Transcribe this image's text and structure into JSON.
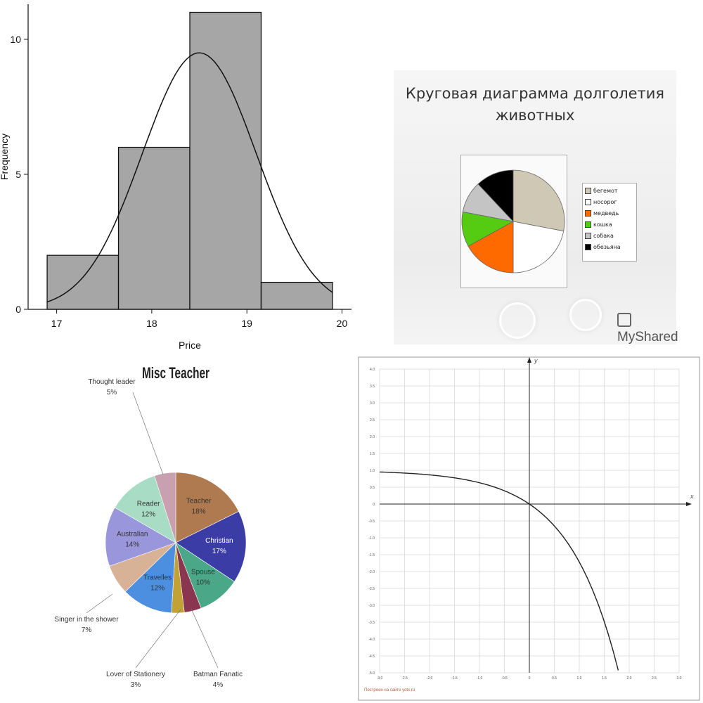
{
  "chart_data": [
    {
      "type": "bar",
      "subtype": "histogram-with-normal-curve",
      "xlabel": "Price",
      "ylabel": "Frequency",
      "xlim": [
        16.7,
        20.1
      ],
      "ylim": [
        0,
        11.3
      ],
      "xticks": [
        "17",
        "18",
        "19",
        "20"
      ],
      "yticks": [
        "0",
        "5",
        "10"
      ],
      "bins": [
        {
          "start": 16.9,
          "end": 17.65,
          "value": 2
        },
        {
          "start": 17.65,
          "end": 18.4,
          "value": 6
        },
        {
          "start": 18.4,
          "end": 19.15,
          "value": 11
        },
        {
          "start": 19.15,
          "end": 19.9,
          "value": 1
        }
      ],
      "curve": {
        "mean": 18.5,
        "sd": 0.6,
        "peak": 9.5,
        "range": [
          16.9,
          19.9
        ]
      },
      "bar_color": "#a6a6a6"
    },
    {
      "type": "pie",
      "title": [
        "Круговая диаграмма долголетия",
        "животных"
      ],
      "legend_position": "right",
      "slices": [
        {
          "label": "бегемот",
          "value": 28,
          "color": "#cfc8b5"
        },
        {
          "label": "носорог",
          "value": 22,
          "color": "#ffffff"
        },
        {
          "label": "медведь",
          "value": 17,
          "color": "#ff6a00"
        },
        {
          "label": "кошка",
          "value": 11,
          "color": "#55cc11"
        },
        {
          "label": "собака",
          "value": 10,
          "color": "#c4c4c4"
        },
        {
          "label": "обезьяна",
          "value": 12,
          "color": "#000000"
        }
      ],
      "watermark": "MyShared"
    },
    {
      "type": "pie",
      "title": "Misc Teacher",
      "slices": [
        {
          "label": "Teacher",
          "pct": "18%",
          "value": 18,
          "color": "#b07a50",
          "inside": true
        },
        {
          "label": "Christian",
          "pct": "17%",
          "value": 17,
          "color": "#3c3ca6",
          "inside": true
        },
        {
          "label": "Spouse",
          "pct": "10%",
          "value": 10,
          "color": "#4aa888",
          "inside": true
        },
        {
          "label": "Batman Fanatic",
          "pct": "4%",
          "value": 4,
          "color": "#8a3650",
          "inside": false
        },
        {
          "label": "Lover of Stationery",
          "pct": "3%",
          "value": 3,
          "color": "#c2a235",
          "inside": false
        },
        {
          "label": "Travelles",
          "pct": "12%",
          "value": 12,
          "color": "#4c8fe0",
          "inside": true
        },
        {
          "label": "Singer in the shower",
          "pct": "7%",
          "value": 7,
          "color": "#d8b296",
          "inside": false
        },
        {
          "label": "Australian",
          "pct": "14%",
          "value": 14,
          "color": "#9a96dc",
          "inside": true
        },
        {
          "label": "Reader",
          "pct": "12%",
          "value": 12,
          "color": "#a8dcc4",
          "inside": true
        },
        {
          "label": "Thought leader",
          "pct": "5%",
          "value": 5,
          "color": "#c9a0b0",
          "inside": false
        }
      ]
    },
    {
      "type": "line",
      "xlabel": "x",
      "ylabel": "y",
      "xlim": [
        -3.0,
        3.0
      ],
      "ylim": [
        -5.0,
        4.0
      ],
      "xticks": [
        "-3.0",
        "-2.5",
        "-2.0",
        "-1.5",
        "-1.0",
        "-0.5",
        "0",
        "0.5",
        "1.0",
        "1.5",
        "2.0",
        "2.5",
        "3.0"
      ],
      "yticks": [
        "4.0",
        "3.5",
        "3.0",
        "2.5",
        "2.0",
        "1.5",
        "1.0",
        "0.5",
        "0",
        "-0.5",
        "-1.0",
        "-1.5",
        "-2.0",
        "-2.5",
        "-3.0",
        "-3.5",
        "-4.0",
        "-4.5",
        "-5.0"
      ],
      "function": "y = 1 - e^x",
      "grid": true,
      "footer": "Построен на сайте yotx.ru"
    }
  ]
}
